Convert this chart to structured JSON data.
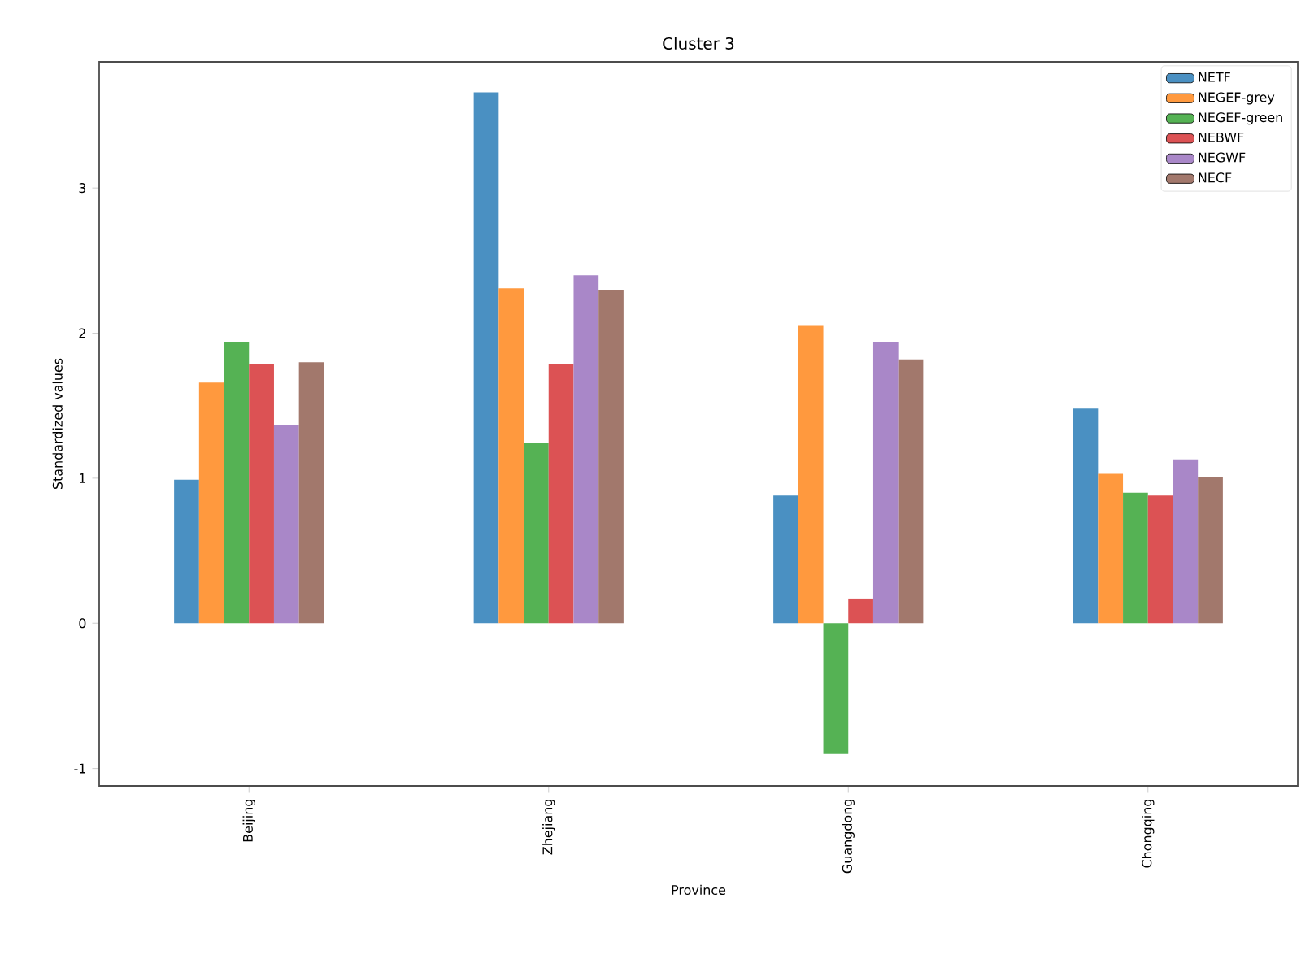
{
  "chart_data": {
    "type": "bar",
    "title": "Cluster 3",
    "xlabel": "Province",
    "ylabel": "Standardized values",
    "categories": [
      "Beijing",
      "Zhejiang",
      "Guangdong",
      "Chongqing"
    ],
    "series": [
      {
        "name": "NETF",
        "color": "#4a90c2",
        "values": [
          0.99,
          3.66,
          0.88,
          1.48
        ]
      },
      {
        "name": "NEGEF-grey",
        "color": "#ff993e",
        "values": [
          1.66,
          2.31,
          2.05,
          1.03
        ]
      },
      {
        "name": "NEGEF-green",
        "color": "#55b254",
        "values": [
          1.94,
          1.24,
          -0.9,
          0.9
        ]
      },
      {
        "name": "NEBWF",
        "color": "#dc5254",
        "values": [
          1.79,
          1.79,
          0.17,
          0.88
        ]
      },
      {
        "name": "NEGWF",
        "color": "#a987c8",
        "values": [
          1.37,
          2.4,
          1.94,
          1.13
        ]
      },
      {
        "name": "NECF",
        "color": "#a2786c",
        "values": [
          1.8,
          2.3,
          1.82,
          1.01
        ]
      }
    ],
    "ylim": [
      -1.12,
      3.87
    ],
    "yticks": [
      -1,
      0,
      1,
      2,
      3
    ],
    "grid": false,
    "legend": "top right"
  }
}
